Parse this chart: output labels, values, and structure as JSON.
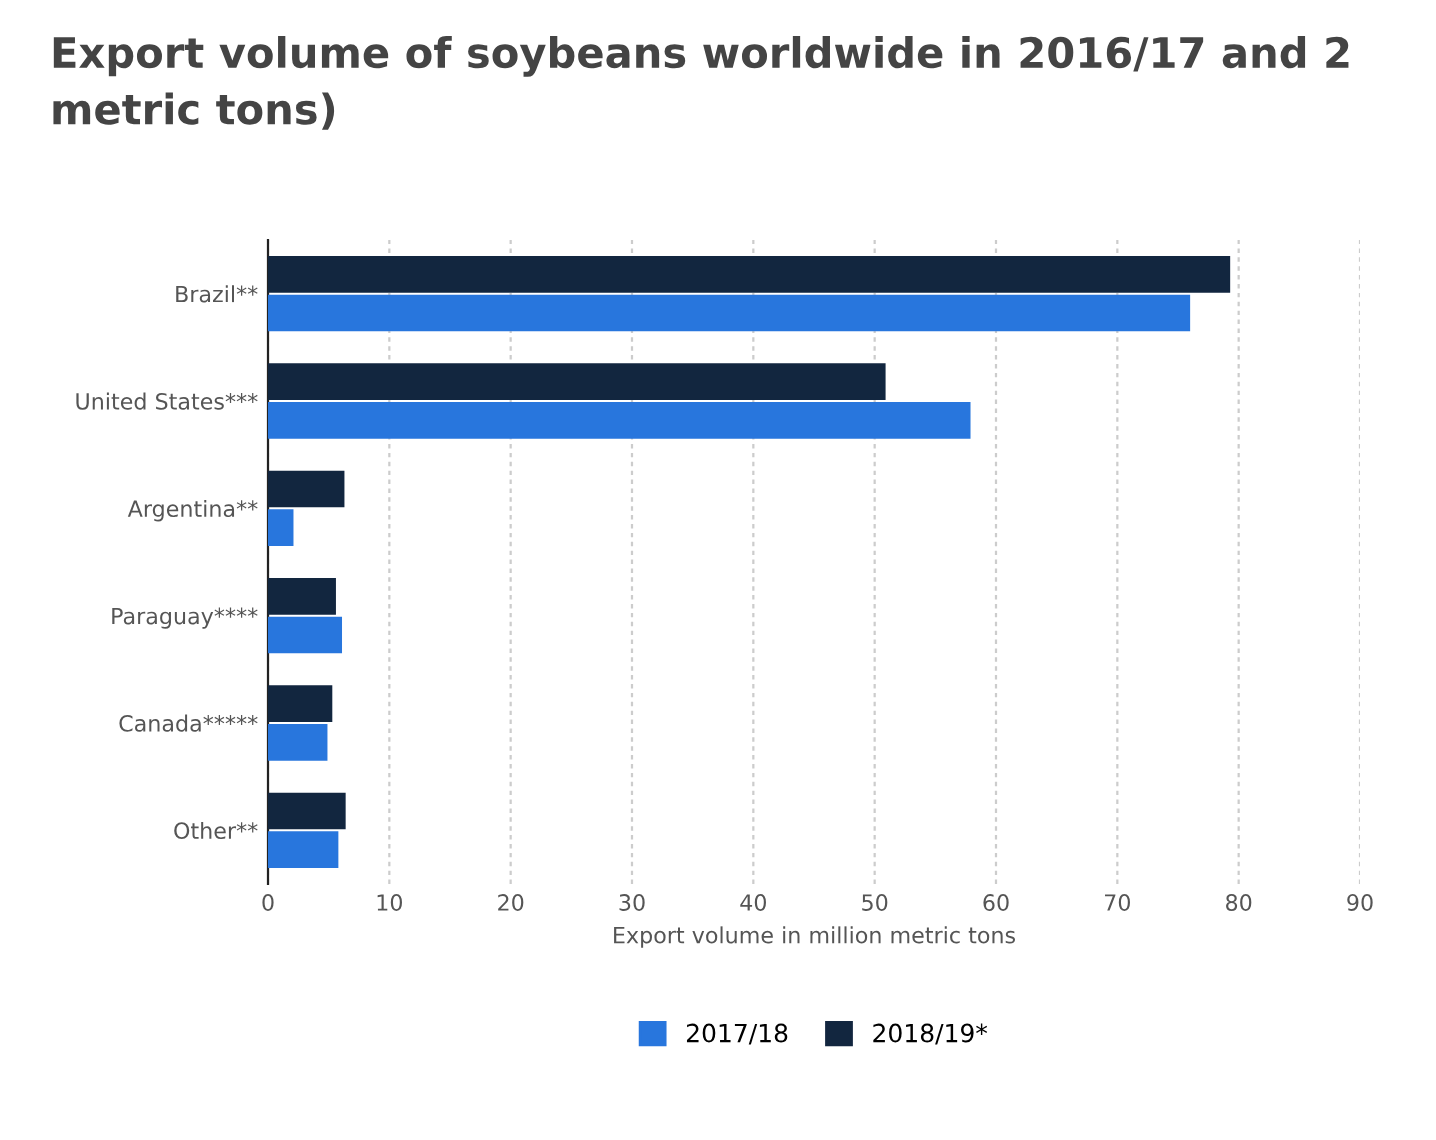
{
  "chart_data": {
    "type": "bar",
    "orientation": "horizontal",
    "title": "Export volume of soybeans worldwide in 2016/17 and 2\nmetric tons)",
    "xlabel": "Export volume in million metric tons",
    "categories": [
      "Brazil**",
      "United States***",
      "Argentina**",
      "Paraguay****",
      "Canada*****",
      "Other**"
    ],
    "series": [
      {
        "name": "2017/18",
        "color": "#2876dd",
        "values": [
          76.0,
          57.9,
          2.1,
          6.1,
          4.9,
          5.8
        ]
      },
      {
        "name": "2018/19*",
        "color": "#12263f",
        "values": [
          79.3,
          50.9,
          6.3,
          5.6,
          5.3,
          6.4
        ]
      }
    ],
    "xlim": [
      0,
      90
    ],
    "xticks": [
      0,
      10,
      20,
      30,
      40,
      50,
      60,
      70,
      80,
      90
    ],
    "grid": "x",
    "legend": "bottom"
  }
}
